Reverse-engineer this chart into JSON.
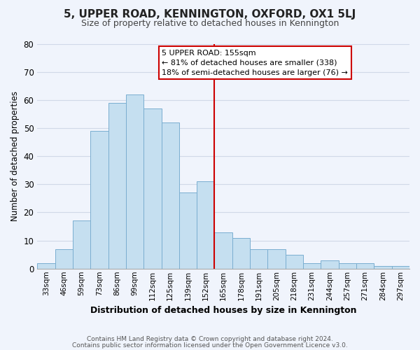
{
  "title": "5, UPPER ROAD, KENNINGTON, OXFORD, OX1 5LJ",
  "subtitle": "Size of property relative to detached houses in Kennington",
  "xlabel": "Distribution of detached houses by size in Kennington",
  "ylabel": "Number of detached properties",
  "bar_labels": [
    "33sqm",
    "46sqm",
    "59sqm",
    "73sqm",
    "86sqm",
    "99sqm",
    "112sqm",
    "125sqm",
    "139sqm",
    "152sqm",
    "165sqm",
    "178sqm",
    "191sqm",
    "205sqm",
    "218sqm",
    "231sqm",
    "244sqm",
    "257sqm",
    "271sqm",
    "284sqm",
    "297sqm"
  ],
  "bar_values": [
    2,
    7,
    17,
    49,
    59,
    62,
    57,
    52,
    27,
    31,
    13,
    11,
    7,
    7,
    5,
    2,
    3,
    2,
    2,
    1,
    1
  ],
  "bar_color": "#c5dff0",
  "bar_edge_color": "#7aaed0",
  "grid_color": "#d0d8e8",
  "background_color": "#f0f4fc",
  "vline_x_index": 9.5,
  "vline_color": "#cc0000",
  "annotation_title": "5 UPPER ROAD: 155sqm",
  "annotation_line1": "← 81% of detached houses are smaller (338)",
  "annotation_line2": "18% of semi-detached houses are larger (76) →",
  "ann_box_color": "#ffffff",
  "ann_border_color": "#cc0000",
  "ann_text_color": "#000000",
  "footer_line1": "Contains HM Land Registry data © Crown copyright and database right 2024.",
  "footer_line2": "Contains public sector information licensed under the Open Government Licence v3.0.",
  "ylim": [
    0,
    80
  ],
  "yticks": [
    0,
    10,
    20,
    30,
    40,
    50,
    60,
    70,
    80
  ]
}
